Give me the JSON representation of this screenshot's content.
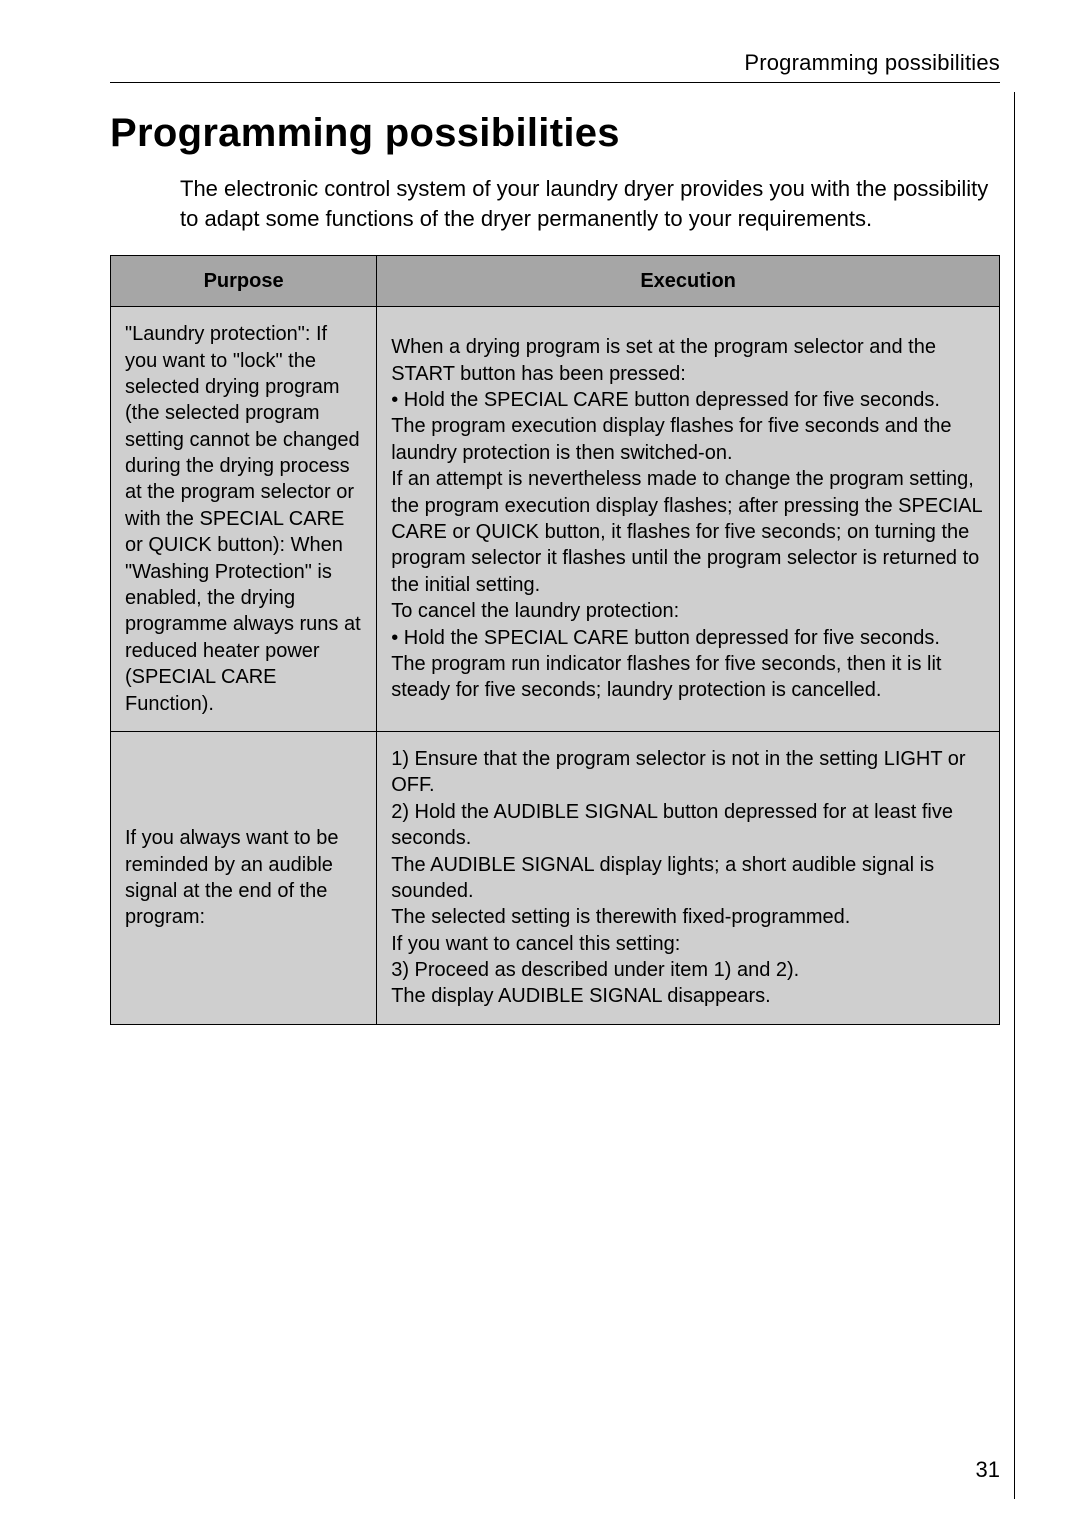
{
  "running_head": "Programming possibilities",
  "title": "Programming possibilities",
  "intro": "The electronic control system of your laundry dryer provides you with the possibility to adapt some functions of the dryer permanently to your requirements.",
  "table": {
    "headers": {
      "purpose": "Purpose",
      "execution": "Execution"
    },
    "rows": [
      {
        "purpose": "\"Laundry protection\": If you want to \"lock\" the selected drying program (the selected program setting cannot be changed during the drying process at the program selector or with the SPECIAL CARE or QUICK button): When \"Washing Protection\" is enabled, the drying programme always runs at reduced heater power (SPECIAL CARE Function).",
        "execution": "When a drying program is set at the program selector and the START button has been pressed:\n•  Hold the SPECIAL CARE button depressed for five seconds.\nThe program execution display flashes for five seconds and the laundry protection is then switched-on.\nIf an attempt is nevertheless made to change the program setting, the program execution display flashes; after pressing the SPECIAL CARE or QUICK button, it flashes for five seconds; on turning the program selector it flashes until the program selector is returned to the initial setting.\nTo cancel the laundry protection:\n•  Hold the SPECIAL CARE button depressed for five seconds.\nThe program run indicator flashes for five seconds, then it is lit steady for five seconds; laundry protection is cancelled."
      },
      {
        "purpose": "If you always want to be reminded by an audible signal at the end of the program:",
        "execution": "1)  Ensure that the program selector is not in the setting LIGHT or OFF.\n2)  Hold the AUDIBLE SIGNAL button depressed for at least five seconds.\nThe AUDIBLE SIGNAL display lights; a short audible signal is sounded.\nThe selected setting is therewith fixed-programmed.\nIf you want to cancel this setting:\n3) Proceed as described under item 1) and 2).\nThe display AUDIBLE SIGNAL disappears."
      }
    ]
  },
  "page_number": "31",
  "colors": {
    "header_bg": "#a6a6a6",
    "cell_bg": "#cfcfcf",
    "text": "#000000",
    "page_bg": "#ffffff"
  },
  "fontsizes": {
    "running_head": 22,
    "title": 40,
    "intro": 22,
    "table": 20,
    "page_num": 22
  }
}
